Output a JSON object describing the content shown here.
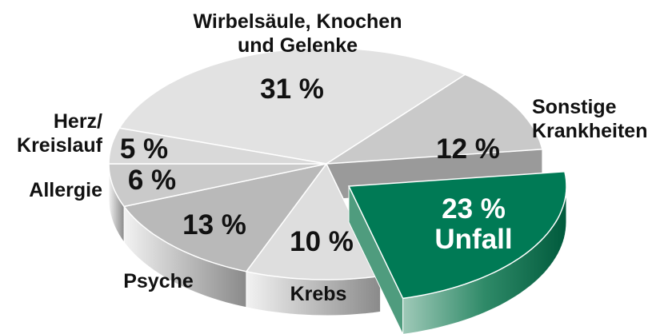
{
  "chart_data": {
    "type": "pie",
    "categories": [
      "Wirbelsäule, Knochen\nund Gelenke",
      "Sonstige\nKrankheiten",
      "Unfall",
      "Krebs",
      "Psyche",
      "Allergie",
      "Herz/\nKreislauf"
    ],
    "values": [
      31,
      12,
      23,
      10,
      13,
      6,
      5
    ],
    "value_labels": [
      "31 %",
      "12 %",
      "23 %",
      "10 %",
      "13 %",
      "6 %",
      "5 %"
    ],
    "colors": [
      "#e2e2e2",
      "#c9c9c9",
      "#007a55",
      "#dedede",
      "#b9b9b9",
      "#cacaca",
      "#d9d9d9"
    ]
  }
}
